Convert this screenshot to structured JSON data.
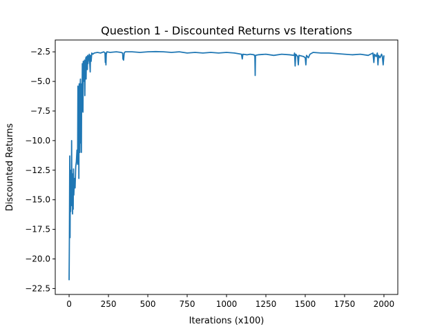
{
  "chart_data": {
    "type": "line",
    "title": "Question 1 - Discounted Returns vs Iterations",
    "xlabel": "Iterations (x100)",
    "ylabel": "Discounted Returns",
    "xlim": [
      -88,
      2088
    ],
    "ylim": [
      -23.0,
      -1.5
    ],
    "xticks": [
      0,
      250,
      500,
      750,
      1000,
      1250,
      1500,
      1750,
      2000
    ],
    "xtick_labels": [
      "0",
      "250",
      "500",
      "750",
      "1000",
      "1250",
      "1500",
      "1750",
      "2000"
    ],
    "yticks": [
      -2.5,
      -5.0,
      -7.5,
      -10.0,
      -12.5,
      -15.0,
      -17.5,
      -20.0,
      -22.5
    ],
    "ytick_labels": [
      "−2.5",
      "−5.0",
      "−7.5",
      "−10.0",
      "−12.5",
      "−15.0",
      "−17.5",
      "−20.0",
      "−22.5"
    ],
    "grid": false,
    "series": [
      {
        "color": "#1f77b4",
        "points": [
          [
            0,
            -21.8
          ],
          [
            2,
            -18.0
          ],
          [
            4,
            -11.3
          ],
          [
            6,
            -18.2
          ],
          [
            8,
            -12.5
          ],
          [
            10,
            -16.0
          ],
          [
            12,
            -13.5
          ],
          [
            14,
            -14.8
          ],
          [
            16,
            -10.0
          ],
          [
            18,
            -15.5
          ],
          [
            20,
            -12.8
          ],
          [
            22,
            -16.2
          ],
          [
            24,
            -14.2
          ],
          [
            26,
            -15.8
          ],
          [
            28,
            -12.4
          ],
          [
            30,
            -14.6
          ],
          [
            34,
            -13.2
          ],
          [
            38,
            -14.0
          ],
          [
            42,
            -12.2
          ],
          [
            46,
            -11.8
          ],
          [
            50,
            -10.8
          ],
          [
            54,
            -12.0
          ],
          [
            56,
            -5.4
          ],
          [
            58,
            -11.5
          ],
          [
            60,
            -7.2
          ],
          [
            62,
            -13.2
          ],
          [
            64,
            -5.2
          ],
          [
            66,
            -8.0
          ],
          [
            68,
            -11.0
          ],
          [
            70,
            -5.5
          ],
          [
            72,
            -4.8
          ],
          [
            74,
            -10.2
          ],
          [
            76,
            -6.5
          ],
          [
            78,
            -11.0
          ],
          [
            80,
            -5.2
          ],
          [
            82,
            -7.5
          ],
          [
            84,
            -3.5
          ],
          [
            86,
            -4.8
          ],
          [
            88,
            -7.6
          ],
          [
            90,
            -3.3
          ],
          [
            92,
            -5.0
          ],
          [
            94,
            -3.8
          ],
          [
            96,
            -4.2
          ],
          [
            98,
            -3.2
          ],
          [
            100,
            -6.2
          ],
          [
            102,
            -3.5
          ],
          [
            104,
            -4.3
          ],
          [
            106,
            -3.0
          ],
          [
            108,
            -4.8
          ],
          [
            110,
            -2.9
          ],
          [
            112,
            -3.6
          ],
          [
            114,
            -3.2
          ],
          [
            116,
            -4.0
          ],
          [
            118,
            -2.8
          ],
          [
            120,
            -3.5
          ],
          [
            124,
            -3.0
          ],
          [
            128,
            -2.7
          ],
          [
            132,
            -3.7
          ],
          [
            134,
            -4.2
          ],
          [
            136,
            -2.8
          ],
          [
            140,
            -3.3
          ],
          [
            144,
            -2.6
          ],
          [
            150,
            -2.7
          ],
          [
            160,
            -2.6
          ],
          [
            180,
            -2.55
          ],
          [
            200,
            -2.6
          ],
          [
            220,
            -2.5
          ],
          [
            228,
            -2.6
          ],
          [
            230,
            -3.4
          ],
          [
            232,
            -2.6
          ],
          [
            234,
            -3.6
          ],
          [
            236,
            -2.7
          ],
          [
            240,
            -2.5
          ],
          [
            260,
            -2.55
          ],
          [
            300,
            -2.5
          ],
          [
            330,
            -2.55
          ],
          [
            340,
            -2.6
          ],
          [
            342,
            -3.1
          ],
          [
            346,
            -3.2
          ],
          [
            350,
            -2.6
          ],
          [
            356,
            -2.5
          ],
          [
            400,
            -2.5
          ],
          [
            450,
            -2.55
          ],
          [
            500,
            -2.5
          ],
          [
            550,
            -2.48
          ],
          [
            600,
            -2.5
          ],
          [
            650,
            -2.55
          ],
          [
            700,
            -2.5
          ],
          [
            750,
            -2.6
          ],
          [
            800,
            -2.55
          ],
          [
            850,
            -2.6
          ],
          [
            900,
            -2.55
          ],
          [
            950,
            -2.6
          ],
          [
            1000,
            -2.55
          ],
          [
            1050,
            -2.6
          ],
          [
            1095,
            -2.7
          ],
          [
            1100,
            -3.1
          ],
          [
            1104,
            -2.7
          ],
          [
            1130,
            -2.75
          ],
          [
            1150,
            -2.7
          ],
          [
            1175,
            -2.75
          ],
          [
            1180,
            -2.9
          ],
          [
            1182,
            -4.5
          ],
          [
            1184,
            -2.8
          ],
          [
            1200,
            -2.75
          ],
          [
            1250,
            -2.7
          ],
          [
            1300,
            -2.8
          ],
          [
            1350,
            -2.7
          ],
          [
            1400,
            -2.75
          ],
          [
            1430,
            -2.8
          ],
          [
            1432,
            -2.6
          ],
          [
            1436,
            -3.7
          ],
          [
            1440,
            -2.7
          ],
          [
            1452,
            -2.9
          ],
          [
            1456,
            -3.6
          ],
          [
            1460,
            -2.8
          ],
          [
            1490,
            -2.9
          ],
          [
            1500,
            -3.0
          ],
          [
            1504,
            -3.6
          ],
          [
            1508,
            -2.8
          ],
          [
            1520,
            -3.0
          ],
          [
            1530,
            -2.7
          ],
          [
            1550,
            -2.55
          ],
          [
            1600,
            -2.6
          ],
          [
            1650,
            -2.6
          ],
          [
            1700,
            -2.65
          ],
          [
            1750,
            -2.7
          ],
          [
            1800,
            -2.75
          ],
          [
            1850,
            -2.7
          ],
          [
            1900,
            -2.8
          ],
          [
            1930,
            -2.6
          ],
          [
            1936,
            -3.4
          ],
          [
            1940,
            -2.7
          ],
          [
            1950,
            -2.9
          ],
          [
            1958,
            -2.6
          ],
          [
            1962,
            -3.6
          ],
          [
            1966,
            -2.8
          ],
          [
            1975,
            -3.0
          ],
          [
            1985,
            -2.7
          ],
          [
            1990,
            -2.9
          ],
          [
            1995,
            -3.6
          ],
          [
            2000,
            -2.8
          ]
        ]
      }
    ]
  }
}
